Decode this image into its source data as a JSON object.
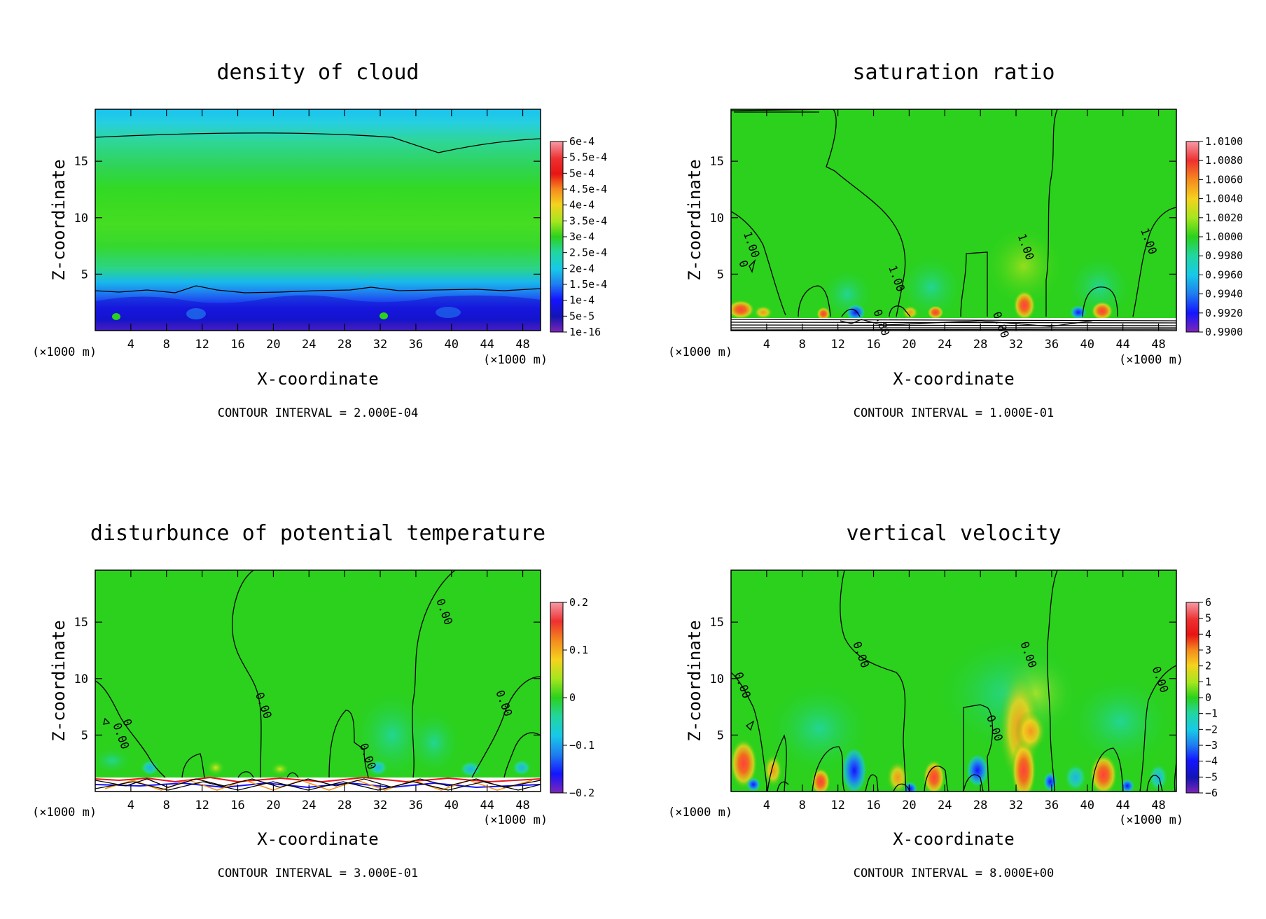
{
  "chart_data": [
    {
      "type": "heatmap",
      "title": "density of cloud",
      "xlabel": "X-coordinate",
      "ylabel": "Z-coordinate",
      "x_unit": "(×1000 m)",
      "z_unit": "(×1000 m)",
      "xlim": [
        0,
        50
      ],
      "ylim": [
        0,
        19.6
      ],
      "x_ticks": [
        "4",
        "8",
        "12",
        "16",
        "20",
        "24",
        "28",
        "32",
        "36",
        "40",
        "44",
        "48"
      ],
      "y_ticks": [
        "5",
        "10",
        "15"
      ],
      "colorbar_labels": [
        "6e-4",
        "5.5e-4",
        "5e-4",
        "4.5e-4",
        "4e-4",
        "3.5e-4",
        "3e-4",
        "2.5e-4",
        "2e-4",
        "1.5e-4",
        "1e-4",
        "5e-5",
        "1e-16"
      ],
      "contour_labels": [],
      "contour_interval": "CONTOUR INTERVAL = 2.000E-04"
    },
    {
      "type": "heatmap",
      "title": "saturation ratio",
      "xlabel": "X-coordinate",
      "ylabel": "Z-coordinate",
      "x_unit": "(×1000 m)",
      "z_unit": "(×1000 m)",
      "xlim": [
        0,
        50
      ],
      "ylim": [
        0,
        19.6
      ],
      "x_ticks": [
        "4",
        "8",
        "12",
        "16",
        "20",
        "24",
        "28",
        "32",
        "36",
        "40",
        "44",
        "48"
      ],
      "y_ticks": [
        "5",
        "10",
        "15"
      ],
      "colorbar_labels": [
        "1.0100",
        "1.0080",
        "1.0060",
        "1.0040",
        "1.0020",
        "1.0000",
        "0.9980",
        "0.9960",
        "0.9940",
        "0.9920",
        "0.9900"
      ],
      "contour_labels": [
        {
          "text": "1.00",
          "x": 1.9,
          "z": 7.5
        },
        {
          "text": "0",
          "x": 1.0,
          "z": 5.8
        },
        {
          "text": "1.00",
          "x": 18.2,
          "z": 4.5
        },
        {
          "text": "1.00",
          "x": 32.7,
          "z": 7.3
        },
        {
          "text": "1.00",
          "x": 46.5,
          "z": 7.8
        },
        {
          "text": "0.80",
          "x": 16.5,
          "z": 0.6
        },
        {
          "text": "0.80",
          "x": 29.9,
          "z": 0.4
        }
      ],
      "contour_interval": "CONTOUR INTERVAL = 1.000E-01"
    },
    {
      "type": "heatmap",
      "title": "disturbunce of potential temperature",
      "xlabel": "X-coordinate",
      "ylabel": "Z-coordinate",
      "x_unit": "(×1000 m)",
      "z_unit": "(×1000 m)",
      "xlim": [
        0,
        50
      ],
      "ylim": [
        0,
        19.6
      ],
      "x_ticks": [
        "4",
        "8",
        "12",
        "16",
        "20",
        "24",
        "28",
        "32",
        "36",
        "40",
        "44",
        "48"
      ],
      "y_ticks": [
        "5",
        "10",
        "15"
      ],
      "colorbar_labels": [
        "0.2",
        "0.1",
        "0",
        "−0.1",
        "−0.2"
      ],
      "contour_labels": [
        {
          "text": "0.00",
          "x": 18.5,
          "z": 7.5
        },
        {
          "text": "0.00",
          "x": 38.8,
          "z": 15.8
        },
        {
          "text": "0.00",
          "x": 45.5,
          "z": 7.7
        },
        {
          "text": "0",
          "x": 3.2,
          "z": 6.0
        },
        {
          "text": "0.00",
          "x": 2.5,
          "z": 4.8
        },
        {
          "text": "0.00",
          "x": 30.2,
          "z": 3.0
        }
      ],
      "contour_interval": "CONTOUR INTERVAL = 3.000E-01"
    },
    {
      "type": "heatmap",
      "title": "vertical velocity",
      "xlabel": "X-coordinate",
      "ylabel": "Z-coordinate",
      "x_unit": "(×1000 m)",
      "z_unit": "(×1000 m)",
      "xlim": [
        0,
        50
      ],
      "ylim": [
        0,
        19.6
      ],
      "x_ticks": [
        "4",
        "8",
        "12",
        "16",
        "20",
        "24",
        "28",
        "32",
        "36",
        "40",
        "44",
        "48"
      ],
      "y_ticks": [
        "5",
        "10",
        "15"
      ],
      "colorbar_labels": [
        "6",
        "5",
        "4",
        "3",
        "2",
        "1",
        "0",
        "−1",
        "−2",
        "−3",
        "−4",
        "−5",
        "−6"
      ],
      "contour_labels": [
        {
          "text": "0.00",
          "x": 0.9,
          "z": 9.3
        },
        {
          "text": "0.00",
          "x": 14.2,
          "z": 12.0
        },
        {
          "text": "0.00",
          "x": 33.0,
          "z": 12.0
        },
        {
          "text": "0.00",
          "x": 47.8,
          "z": 9.8
        },
        {
          "text": "0.00",
          "x": 29.2,
          "z": 5.5
        }
      ],
      "contour_interval": "CONTOUR INTERVAL = 8.000E+00"
    }
  ],
  "colors": {
    "green": "#2bd11c",
    "cyan": "#17c9e8",
    "blue": "#1414ff",
    "purple": "#7d26b5",
    "red": "#e8141e",
    "orange": "#f5931e"
  }
}
